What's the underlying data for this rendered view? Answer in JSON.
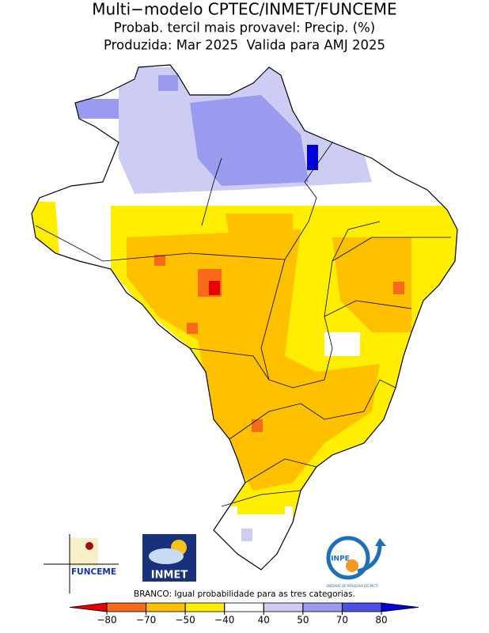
{
  "header": {
    "title": "Multi−modelo CPTEC/INMET/FUNCEME",
    "subtitle": "Probab. tercil mais provavel: Precip. (%)",
    "produced": "Produzida: Mar 2025  Valida para AMJ 2025"
  },
  "logos": {
    "funceme": "FUNCEME",
    "inmet": "INMET",
    "inpe": "INPE",
    "inpe_caption": "UNIDADE DE PESQUISA DO MCTI"
  },
  "legend": {
    "note": "BRANCO: Igual probabilidade para as tres categorias.",
    "ticks": [
      {
        "value": -80,
        "label": "−80"
      },
      {
        "value": -70,
        "label": "−70"
      },
      {
        "value": -50,
        "label": "−50"
      },
      {
        "value": -40,
        "label": "−40"
      },
      40,
      50,
      70,
      80
    ],
    "colors": [
      "#e80000",
      "#f86a1a",
      "#ffc000",
      "#ffee00",
      "#ffffff",
      "#ccccf5",
      "#9a9aee",
      "#5050e0",
      "#0000dd"
    ]
  }
}
